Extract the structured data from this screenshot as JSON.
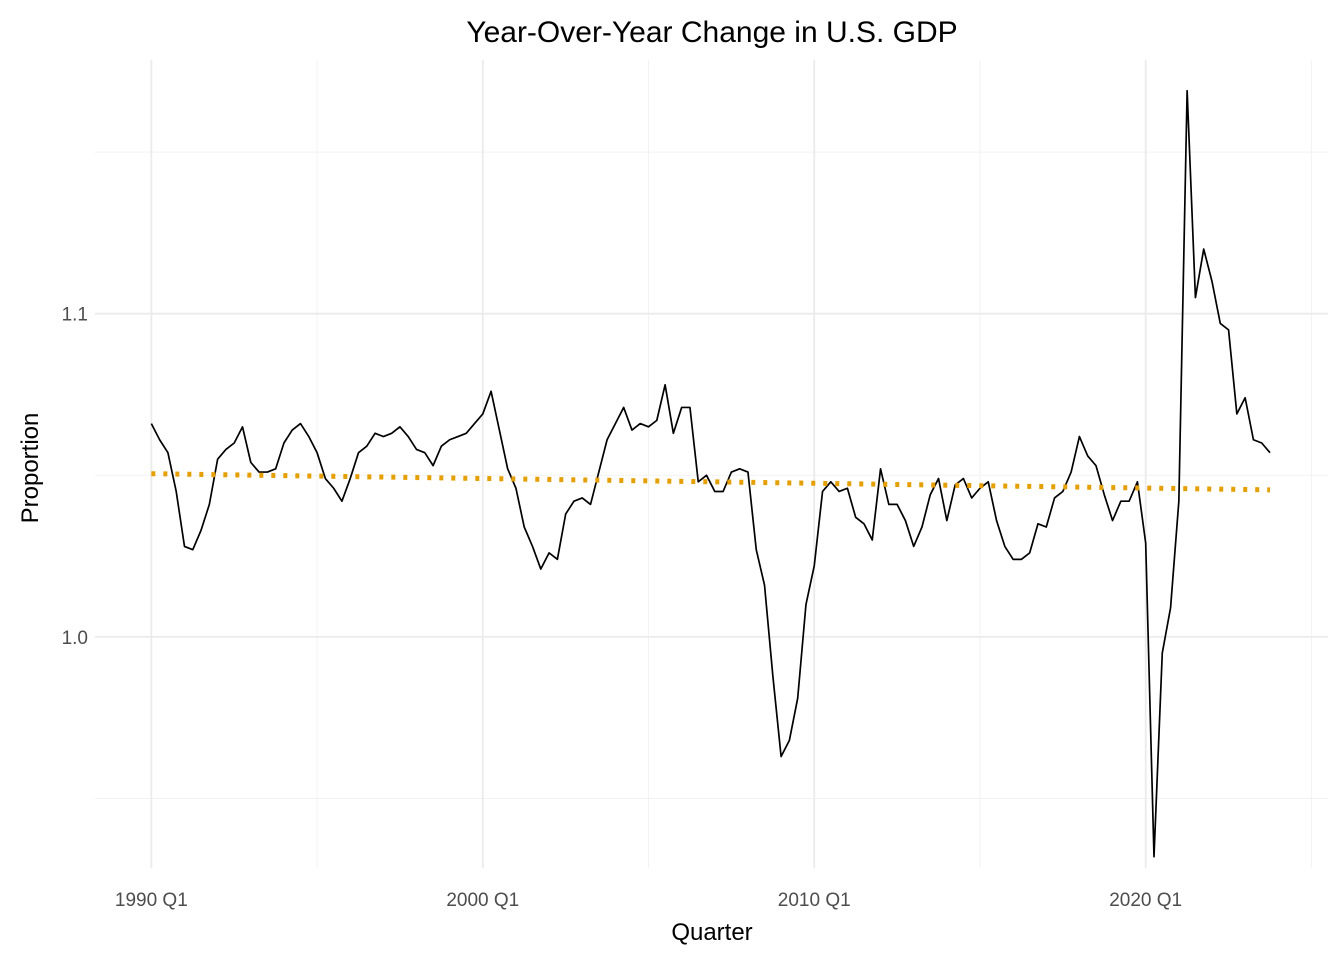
{
  "chart_data": {
    "type": "line",
    "title": "Year-Over-Year Change in U.S. GDP",
    "xlabel": "Quarter",
    "ylabel": "Proportion",
    "x_ticks": [
      {
        "label": "1990 Q1",
        "value": 1990.0
      },
      {
        "label": "2000 Q1",
        "value": 2000.0
      },
      {
        "label": "2010 Q1",
        "value": 2010.0
      },
      {
        "label": "2020 Q1",
        "value": 2020.0
      }
    ],
    "x_minor_ticks": [
      1995.0,
      2005.0,
      2015.0,
      2025.0
    ],
    "y_ticks": [
      {
        "label": "1.0",
        "value": 1.0
      },
      {
        "label": "1.1",
        "value": 1.1
      }
    ],
    "y_minor_ticks": [
      0.95,
      1.05,
      1.15
    ],
    "xlim": [
      1988.3,
      2025.5
    ],
    "ylim": [
      0.9285,
      1.1785
    ],
    "grid": true,
    "legend": "none",
    "series": [
      {
        "style": "solid",
        "color": "#000000",
        "x": [
          1990.0,
          1990.25,
          1990.5,
          1990.75,
          1991.0,
          1991.25,
          1991.5,
          1991.75,
          1992.0,
          1992.25,
          1992.5,
          1992.75,
          1993.0,
          1993.25,
          1993.5,
          1993.75,
          1994.0,
          1994.25,
          1994.5,
          1994.75,
          1995.0,
          1995.25,
          1995.5,
          1995.75,
          1996.0,
          1996.25,
          1996.5,
          1996.75,
          1997.0,
          1997.25,
          1997.5,
          1997.75,
          1998.0,
          1998.25,
          1998.5,
          1998.75,
          1999.0,
          1999.25,
          1999.5,
          1999.75,
          2000.0,
          2000.25,
          2000.5,
          2000.75,
          2001.0,
          2001.25,
          2001.5,
          2001.75,
          2002.0,
          2002.25,
          2002.5,
          2002.75,
          2003.0,
          2003.25,
          2003.5,
          2003.75,
          2004.0,
          2004.25,
          2004.5,
          2004.75,
          2005.0,
          2005.25,
          2005.5,
          2005.75,
          2006.0,
          2006.25,
          2006.5,
          2006.75,
          2007.0,
          2007.25,
          2007.5,
          2007.75,
          2008.0,
          2008.25,
          2008.5,
          2008.75,
          2009.0,
          2009.25,
          2009.5,
          2009.75,
          2010.0,
          2010.25,
          2010.5,
          2010.75,
          2011.0,
          2011.25,
          2011.5,
          2011.75,
          2012.0,
          2012.25,
          2012.5,
          2012.75,
          2013.0,
          2013.25,
          2013.5,
          2013.75,
          2014.0,
          2014.25,
          2014.5,
          2014.75,
          2015.0,
          2015.25,
          2015.5,
          2015.75,
          2016.0,
          2016.25,
          2016.5,
          2016.75,
          2017.0,
          2017.25,
          2017.5,
          2017.75,
          2018.0,
          2018.25,
          2018.5,
          2018.75,
          2019.0,
          2019.25,
          2019.5,
          2019.75,
          2020.0,
          2020.25,
          2020.5,
          2020.75,
          2021.0,
          2021.25,
          2021.5,
          2021.75,
          2022.0,
          2022.25,
          2022.5,
          2022.75,
          2023.0,
          2023.25,
          2023.5,
          2023.75
        ],
        "y": [
          1.066,
          1.061,
          1.057,
          1.045,
          1.028,
          1.027,
          1.033,
          1.041,
          1.055,
          1.058,
          1.06,
          1.065,
          1.054,
          1.051,
          1.051,
          1.052,
          1.06,
          1.064,
          1.066,
          1.062,
          1.057,
          1.049,
          1.046,
          1.042,
          1.049,
          1.057,
          1.059,
          1.063,
          1.062,
          1.063,
          1.065,
          1.062,
          1.058,
          1.057,
          1.053,
          1.059,
          1.061,
          1.062,
          1.063,
          1.066,
          1.069,
          1.076,
          1.064,
          1.052,
          1.046,
          1.034,
          1.028,
          1.021,
          1.026,
          1.024,
          1.038,
          1.042,
          1.043,
          1.041,
          1.051,
          1.061,
          1.066,
          1.071,
          1.064,
          1.066,
          1.065,
          1.067,
          1.078,
          1.063,
          1.071,
          1.071,
          1.048,
          1.05,
          1.045,
          1.045,
          1.051,
          1.052,
          1.051,
          1.027,
          1.016,
          0.988,
          0.963,
          0.968,
          0.981,
          1.01,
          1.022,
          1.045,
          1.048,
          1.045,
          1.046,
          1.037,
          1.035,
          1.03,
          1.052,
          1.041,
          1.041,
          1.036,
          1.028,
          1.034,
          1.044,
          1.049,
          1.036,
          1.047,
          1.049,
          1.043,
          1.046,
          1.048,
          1.036,
          1.028,
          1.024,
          1.024,
          1.026,
          1.035,
          1.034,
          1.043,
          1.045,
          1.051,
          1.062,
          1.056,
          1.053,
          1.044,
          1.036,
          1.042,
          1.042,
          1.048,
          1.029,
          0.932,
          0.995,
          1.009,
          1.042,
          1.169,
          1.105,
          1.12,
          1.11,
          1.097,
          1.095,
          1.069,
          1.074,
          1.061,
          1.06,
          1.057
        ]
      },
      {
        "style": "dotted",
        "color": "#E69F00",
        "x": [
          1990.0,
          2023.75
        ],
        "y": [
          1.0505,
          1.0455
        ]
      }
    ]
  }
}
